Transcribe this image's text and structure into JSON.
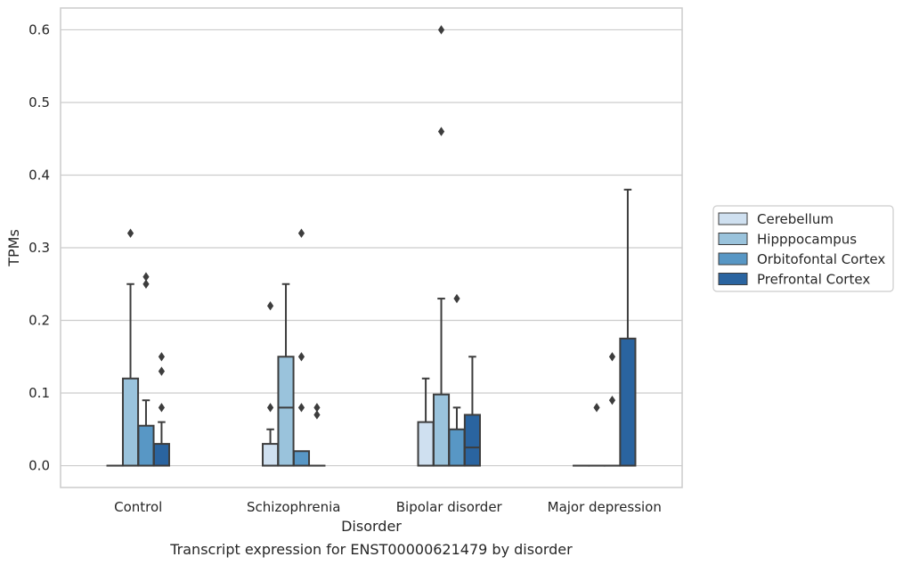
{
  "caption": "Transcript expression for ENST00000621479 by disorder",
  "chart_data": {
    "type": "box",
    "title": "",
    "xlabel": "Disorder",
    "ylabel": "TPMs",
    "ylim": [
      -0.03,
      0.63
    ],
    "yticks": [
      "0.0",
      "0.1",
      "0.2",
      "0.3",
      "0.4",
      "0.5",
      "0.6"
    ],
    "grid": "horizontal",
    "legend_position": "right",
    "categories": [
      "Control",
      "Schizophrenia",
      "Bipolar disorder",
      "Major depression"
    ],
    "series": [
      {
        "name": "Cerebellum",
        "color": "#cfe0f0",
        "boxes": [
          {
            "q1": 0,
            "median": 0,
            "q3": 0,
            "whislo": 0,
            "whishi": 0,
            "fliers": []
          },
          {
            "q1": 0,
            "median": 0,
            "q3": 0.03,
            "whislo": 0,
            "whishi": 0.05,
            "fliers": [
              0.08,
              0.22
            ]
          },
          {
            "q1": 0,
            "median": 0,
            "q3": 0.06,
            "whislo": 0,
            "whishi": 0.12,
            "fliers": []
          },
          {
            "q1": 0,
            "median": 0,
            "q3": 0,
            "whislo": 0,
            "whishi": 0,
            "fliers": []
          }
        ]
      },
      {
        "name": "Hipppocampus",
        "color": "#9ac3dc",
        "boxes": [
          {
            "q1": 0,
            "median": 0,
            "q3": 0.12,
            "whislo": 0,
            "whishi": 0.25,
            "fliers": [
              0.32
            ]
          },
          {
            "q1": 0,
            "median": 0.08,
            "q3": 0.15,
            "whislo": 0,
            "whishi": 0.25,
            "fliers": []
          },
          {
            "q1": 0,
            "median": 0,
            "q3": 0.098,
            "whislo": 0,
            "whishi": 0.23,
            "fliers": [
              0.46,
              0.6
            ]
          },
          {
            "q1": 0,
            "median": 0,
            "q3": 0,
            "whislo": 0,
            "whishi": 0,
            "fliers": [
              0.08
            ]
          }
        ]
      },
      {
        "name": "Orbitofontal Cortex",
        "color": "#5897c5",
        "boxes": [
          {
            "q1": 0,
            "median": 0,
            "q3": 0.055,
            "whislo": 0,
            "whishi": 0.09,
            "fliers": [
              0.25,
              0.26
            ]
          },
          {
            "q1": 0,
            "median": 0,
            "q3": 0.02,
            "whislo": 0,
            "whishi": 0.02,
            "fliers": [
              0.08,
              0.15,
              0.32
            ]
          },
          {
            "q1": 0,
            "median": 0,
            "q3": 0.05,
            "whislo": 0,
            "whishi": 0.08,
            "fliers": [
              0.23
            ]
          },
          {
            "q1": 0,
            "median": 0,
            "q3": 0,
            "whislo": 0,
            "whishi": 0,
            "fliers": [
              0.09,
              0.15
            ]
          }
        ]
      },
      {
        "name": "Prefrontal Cortex",
        "color": "#2a64a0",
        "boxes": [
          {
            "q1": 0,
            "median": 0,
            "q3": 0.03,
            "whislo": 0,
            "whishi": 0.06,
            "fliers": [
              0.08,
              0.13,
              0.15
            ]
          },
          {
            "q1": 0,
            "median": 0,
            "q3": 0,
            "whislo": 0,
            "whishi": 0,
            "fliers": [
              0.07,
              0.08
            ]
          },
          {
            "q1": 0,
            "median": 0.025,
            "q3": 0.07,
            "whislo": 0,
            "whishi": 0.15,
            "fliers": []
          },
          {
            "q1": 0,
            "median": 0,
            "q3": 0.175,
            "whislo": 0,
            "whishi": 0.38,
            "fliers": []
          }
        ]
      }
    ]
  }
}
